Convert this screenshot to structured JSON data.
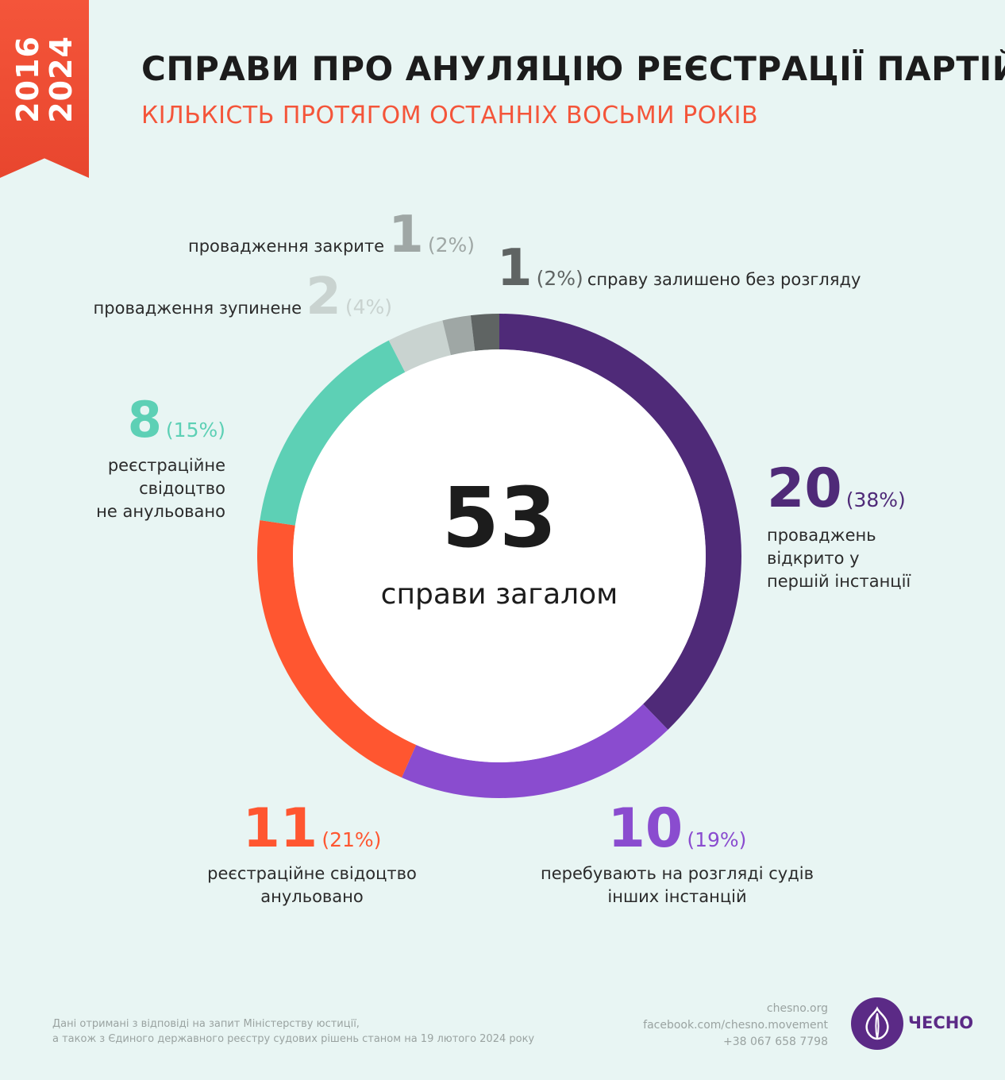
{
  "header": {
    "years": [
      "2016",
      "2024"
    ],
    "title": "СПРАВИ ПРО АНУЛЯЦІЮ РЕЄСТРАЦІЇ ПАРТІЙ",
    "subtitle": "КІЛЬКІСТЬ ПРОТЯГОМ ОСТАННІХ ВОСЬМИ РОКІВ"
  },
  "center": {
    "total": "53",
    "label": "справи загалом"
  },
  "chart_data": {
    "type": "pie",
    "variant": "donut",
    "total": 53,
    "slices": [
      {
        "value": 20,
        "percent": "(38%)",
        "label_lines": [
          "проваджень",
          "відкрито у",
          "першій інстанції"
        ],
        "color": "#4f2a78"
      },
      {
        "value": 10,
        "percent": "(19%)",
        "label_lines": [
          "перебувають на розгляді судів",
          "інших інстанцій"
        ],
        "color": "#8a4ccf"
      },
      {
        "value": 11,
        "percent": "(21%)",
        "label_lines": [
          "реєстраційне свідоцтво",
          "анульовано"
        ],
        "color": "#ff5630"
      },
      {
        "value": 8,
        "percent": "(15%)",
        "label_lines": [
          "реєстраційне",
          "свідоцтво",
          "не анульовано"
        ],
        "color": "#5dd0b5"
      },
      {
        "value": 2,
        "percent": "(4%)",
        "label_lines": [
          "провадження зупинене"
        ],
        "color": "#c9d3d0"
      },
      {
        "value": 1,
        "percent": "(2%)",
        "label_lines": [
          "провадження закрите"
        ],
        "color": "#9fa7a5"
      },
      {
        "value": 1,
        "percent": "(2%)",
        "label_lines": [
          "справу залишено без розгляду"
        ],
        "color": "#5f6463"
      }
    ]
  },
  "footer": {
    "note_lines": [
      "Дані отримані з відповіді на запит Міністерству юстиції,",
      "а також з Єдиного державного реєстру судових рішень станом на 19 лютого 2024 року"
    ],
    "contacts": [
      "chesno.org",
      "facebook.com/chesno.movement",
      "+38 067 658 7798"
    ],
    "logo_text": "ЧЕСНО"
  }
}
